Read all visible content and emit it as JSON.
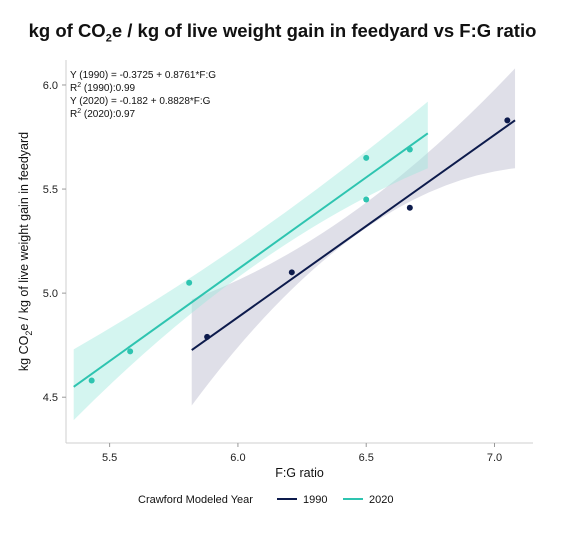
{
  "chart_data": {
    "type": "scatter",
    "title": {
      "pre": "kg of CO",
      "sub": "2",
      "post": "e / kg of live weight gain in feedyard vs F:G ratio"
    },
    "xlabel": "F:G ratio",
    "ylabel": {
      "pre": "kg CO",
      "sub": "2",
      "post": "e / kg of live weight gain in feedyard"
    },
    "xlim": [
      5.33,
      7.15
    ],
    "ylim": [
      4.28,
      6.12
    ],
    "x_ticks": [
      5.5,
      6.0,
      6.5,
      7.0
    ],
    "x_tick_labels": [
      "5.5",
      "6.0",
      "6.5",
      "7.0"
    ],
    "y_ticks": [
      4.5,
      5.0,
      5.5,
      6.0
    ],
    "y_tick_labels": [
      "4.5",
      "5.0",
      "5.5",
      "6.0"
    ],
    "grid": false,
    "legend": {
      "position": "bottom",
      "title": "Crawford Modeled Year",
      "entries": [
        "1990",
        "2020"
      ]
    },
    "annotations": [
      {
        "text": "Y (1990) = -0.3725 + 0.8761*F:G"
      },
      {
        "pre": "R",
        "sup": "2",
        "post": " (1990):0.99"
      },
      {
        "text": "Y (2020) = -0.182 + 0.8828*F:G"
      },
      {
        "pre": "R",
        "sup": "2",
        "post": " (2020):0.97"
      }
    ],
    "series": [
      {
        "name": "1990",
        "color": "#0d1b4c",
        "band_color": "#b7b9cc",
        "points": [
          [
            5.88,
            4.79
          ],
          [
            6.21,
            5.1
          ],
          [
            6.67,
            5.41
          ],
          [
            7.05,
            5.83
          ]
        ],
        "fit": {
          "intercept": -0.3725,
          "slope": 0.8761,
          "x_range": [
            5.82,
            7.08
          ]
        },
        "ci": {
          "at_start": [
            4.46,
            4.97
          ],
          "at_mid": [
            5.27,
            5.39
          ],
          "at_end": [
            5.6,
            6.08
          ]
        }
      },
      {
        "name": "2020",
        "color": "#2ec4b0",
        "band_color": "#9fe8de",
        "points": [
          [
            5.43,
            4.58
          ],
          [
            5.58,
            4.72
          ],
          [
            5.81,
            5.05
          ],
          [
            6.5,
            5.65
          ],
          [
            6.5,
            5.45
          ],
          [
            6.67,
            5.69
          ]
        ],
        "fit": {
          "intercept": -0.182,
          "slope": 0.8828,
          "x_range": [
            5.36,
            6.74
          ]
        },
        "ci": {
          "at_start": [
            4.39,
            4.73
          ],
          "at_mid": [
            5.12,
            5.27
          ],
          "at_end": [
            5.6,
            5.92
          ]
        }
      }
    ]
  }
}
